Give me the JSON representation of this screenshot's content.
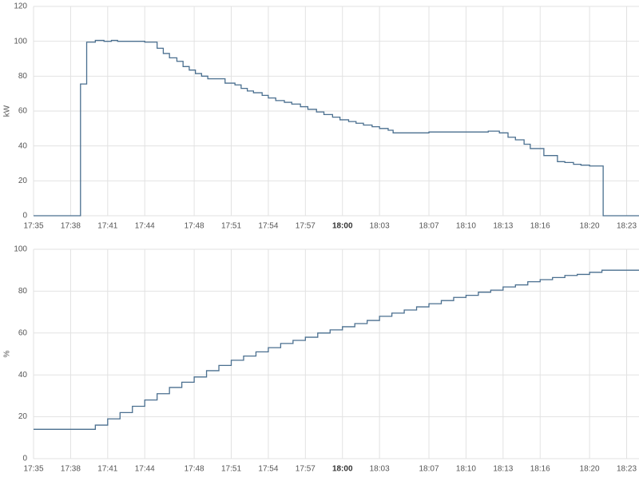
{
  "chart_data": [
    {
      "type": "line",
      "step": "post",
      "y_label": "kW",
      "color": "#4a6f8f",
      "grid": true,
      "xlim": [
        1055,
        1104
      ],
      "ylim": [
        0,
        120
      ],
      "yticks": [
        0,
        20,
        40,
        60,
        80,
        100,
        120
      ],
      "xticks": [
        {
          "value": 1055,
          "label": "17:35"
        },
        {
          "value": 1058,
          "label": "17:38"
        },
        {
          "value": 1061,
          "label": "17:41"
        },
        {
          "value": 1064,
          "label": "17:44"
        },
        {
          "value": 1068,
          "label": "17:48"
        },
        {
          "value": 1071,
          "label": "17:51"
        },
        {
          "value": 1074,
          "label": "17:54"
        },
        {
          "value": 1077,
          "label": "17:57"
        },
        {
          "value": 1080,
          "label": "18:00",
          "bold": true
        },
        {
          "value": 1083,
          "label": "18:03"
        },
        {
          "value": 1087,
          "label": "18:07"
        },
        {
          "value": 1090,
          "label": "18:10"
        },
        {
          "value": 1093,
          "label": "18:13"
        },
        {
          "value": 1096,
          "label": "18:16"
        },
        {
          "value": 1100,
          "label": "18:20"
        },
        {
          "value": 1103,
          "label": "18:23"
        }
      ],
      "x": [
        1055,
        1058.8,
        1059.3,
        1060.0,
        1060.7,
        1061.3,
        1061.8,
        1064.0,
        1065.0,
        1065.5,
        1066.0,
        1066.6,
        1067.1,
        1067.6,
        1068.1,
        1068.6,
        1069.1,
        1070.5,
        1071.3,
        1071.8,
        1072.3,
        1072.8,
        1073.5,
        1074.0,
        1074.6,
        1075.3,
        1075.9,
        1076.6,
        1077.2,
        1077.9,
        1078.5,
        1079.2,
        1079.8,
        1080.5,
        1081.1,
        1081.7,
        1082.4,
        1083.0,
        1083.7,
        1084.1,
        1087.0,
        1091.8,
        1092.7,
        1093.4,
        1094.0,
        1094.7,
        1095.2,
        1096.3,
        1097.4,
        1098.0,
        1098.7,
        1099.3,
        1100.0,
        1101.1,
        1104
      ],
      "values": [
        0,
        75.5,
        99.5,
        100.5,
        100,
        100.5,
        100,
        99.5,
        96,
        93,
        90.5,
        88.5,
        85.5,
        83.5,
        81.5,
        80,
        78.5,
        76,
        75,
        73,
        71.5,
        70.5,
        69,
        67.5,
        66,
        65,
        64,
        62.5,
        61,
        59.5,
        58,
        56.5,
        55,
        54,
        53,
        52,
        51,
        50,
        49,
        47.5,
        48,
        48.5,
        47.5,
        45,
        43.5,
        41,
        38.5,
        34.5,
        31,
        30.5,
        29.5,
        29,
        28.5,
        0,
        0
      ]
    },
    {
      "type": "line",
      "step": "post",
      "y_label": "%",
      "color": "#4a6f8f",
      "grid": true,
      "xlim": [
        1055,
        1104
      ],
      "ylim": [
        0,
        100
      ],
      "yticks": [
        0,
        20,
        40,
        60,
        80,
        100
      ],
      "xticks": [
        {
          "value": 1055,
          "label": "17:35"
        },
        {
          "value": 1058,
          "label": "17:38"
        },
        {
          "value": 1061,
          "label": "17:41"
        },
        {
          "value": 1064,
          "label": "17:44"
        },
        {
          "value": 1068,
          "label": "17:48"
        },
        {
          "value": 1071,
          "label": "17:51"
        },
        {
          "value": 1074,
          "label": "17:54"
        },
        {
          "value": 1077,
          "label": "17:57"
        },
        {
          "value": 1080,
          "label": "18:00",
          "bold": true
        },
        {
          "value": 1083,
          "label": "18:03"
        },
        {
          "value": 1087,
          "label": "18:07"
        },
        {
          "value": 1090,
          "label": "18:10"
        },
        {
          "value": 1093,
          "label": "18:13"
        },
        {
          "value": 1096,
          "label": "18:16"
        },
        {
          "value": 1100,
          "label": "18:20"
        },
        {
          "value": 1103,
          "label": "18:23"
        }
      ],
      "x": [
        1055,
        1060,
        1061,
        1062,
        1063,
        1064,
        1065,
        1066,
        1067,
        1068,
        1069,
        1070,
        1071,
        1072,
        1073,
        1074,
        1075,
        1076,
        1077,
        1078,
        1079,
        1080,
        1081,
        1082,
        1083,
        1084,
        1085,
        1086,
        1087,
        1088,
        1089,
        1090,
        1091,
        1092,
        1093,
        1094,
        1095,
        1096,
        1097,
        1098,
        1099,
        1100,
        1101,
        1104
      ],
      "values": [
        14,
        16,
        19,
        22,
        25,
        28,
        31,
        34,
        36.5,
        39,
        42,
        44.5,
        47,
        49,
        51,
        53,
        55,
        56.5,
        58,
        60,
        61.5,
        63,
        64.5,
        66,
        68,
        69.5,
        71,
        72.5,
        74,
        75.5,
        77,
        78,
        79.5,
        80.5,
        82,
        83,
        84.5,
        85.5,
        86.5,
        87.5,
        88,
        89,
        90,
        90
      ]
    }
  ]
}
